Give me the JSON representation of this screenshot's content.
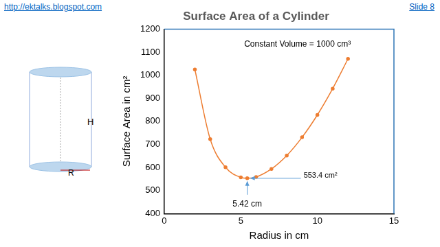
{
  "header": {
    "link": "http://ektalks.blogspot.com",
    "slide": "Slide 8"
  },
  "diagram": {
    "height_label": "H",
    "radius_label": "R"
  },
  "chart_data": {
    "type": "line",
    "title": "Surface Area of a Cylinder",
    "x_label": "Radius in cm",
    "y_label": "Surface Area in cm²",
    "x": [
      2,
      3,
      4,
      5,
      5.42,
      6,
      7,
      8,
      9,
      10,
      11,
      12
    ],
    "values": [
      1025,
      723,
      601,
      557,
      553.4,
      559,
      594,
      652,
      731,
      828,
      942,
      1071
    ],
    "color": "#ED7D31",
    "marker": "circle",
    "grid": false,
    "xlim": [
      0,
      15
    ],
    "xticks": [
      0,
      5,
      10,
      15
    ],
    "ylim": [
      400,
      1200
    ],
    "yticks": [
      400,
      500,
      600,
      700,
      800,
      900,
      1000,
      1100,
      1200
    ],
    "annotations": [
      "Constant Volume = 1000 cm³",
      "553.4 cm²",
      "5.42 cm"
    ]
  }
}
